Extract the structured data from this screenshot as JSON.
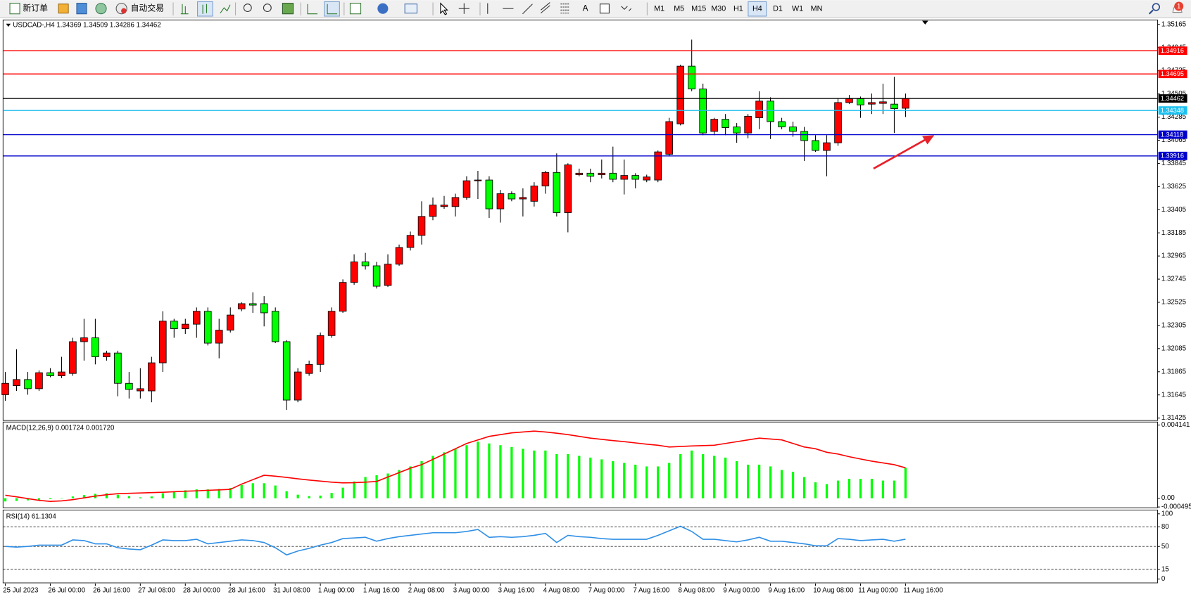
{
  "toolbar": {
    "new_order": "新订单",
    "auto_trading": "自动交易",
    "timeframes": [
      "M1",
      "M5",
      "M15",
      "M30",
      "H1",
      "H4",
      "D1",
      "W1",
      "MN"
    ],
    "active_timeframe": "H4",
    "notifications": "1"
  },
  "chart_data": [
    {
      "type": "candlestick",
      "title": "USDCAD-,H4  1.34369 1.34509 1.34286 1.34462",
      "up_color": "#ff0000",
      "down_color": "#00ff00",
      "open": [
        1.31647,
        1.31733,
        1.31791,
        1.31704,
        1.31856,
        1.31827,
        1.31849,
        1.32151,
        1.32188,
        1.32007,
        1.32043,
        1.31755,
        1.31683,
        1.31683,
        1.3195,
        1.32346,
        1.32274,
        1.32317,
        1.3244,
        1.32137,
        1.3226,
        1.32462,
        1.32512,
        1.32512,
        1.3244,
        1.32151,
        1.31596,
        1.31849,
        1.31935,
        1.32209,
        1.3244,
        1.32714,
        1.32909,
        1.32872,
        1.32685,
        1.32887,
        1.33046,
        1.33161,
        1.33341,
        1.33435,
        1.33435,
        1.33521,
        1.3368,
        1.33687,
        1.33413,
        1.33557,
        1.33507,
        1.33485,
        1.3363,
        1.33759,
        1.33377,
        1.33738,
        1.33752,
        1.33738,
        1.33752,
        1.33694,
        1.3373,
        1.33687,
        1.33687,
        1.33932,
        1.34221,
        1.34769,
        1.34552,
        1.34149,
        1.34264,
        1.34192,
        1.34134,
        1.34278,
        1.34437,
        1.34242,
        1.34192,
        1.34149,
        1.34062,
        1.33968,
        1.34041,
        1.34423,
        1.34459,
        1.34408,
        1.34415,
        1.34408,
        1.34369
      ],
      "high": [
        1.31863,
        1.32079,
        1.31863,
        1.31878,
        1.31899,
        1.32007,
        1.32188,
        1.32368,
        1.32368,
        1.32065,
        1.32065,
        1.31863,
        1.31899,
        1.32007,
        1.3244,
        1.32368,
        1.32368,
        1.32476,
        1.32476,
        1.32368,
        1.32476,
        1.32526,
        1.3262,
        1.32584,
        1.32476,
        1.32166,
        1.31899,
        1.31971,
        1.32238,
        1.32476,
        1.32743,
        1.32981,
        1.32995,
        1.32909,
        1.32981,
        1.33074,
        1.33197,
        1.33485,
        1.33521,
        1.33536,
        1.33557,
        1.33723,
        1.33774,
        1.33723,
        1.33593,
        1.33579,
        1.33608,
        1.33666,
        1.33774,
        1.3394,
        1.33846,
        1.33795,
        1.33795,
        1.33882,
        1.34004,
        1.33882,
        1.33752,
        1.33738,
        1.33968,
        1.34278,
        1.34783,
        1.35021,
        1.34603,
        1.34278,
        1.34314,
        1.34228,
        1.34314,
        1.34531,
        1.34473,
        1.34278,
        1.34242,
        1.34192,
        1.34113,
        1.34113,
        1.34459,
        1.34495,
        1.3448,
        1.34509,
        1.34603,
        1.34668,
        1.34509
      ],
      "low": [
        1.31589,
        1.31683,
        1.31647,
        1.31683,
        1.31813,
        1.31805,
        1.31827,
        1.31971,
        1.31935,
        1.31971,
        1.31632,
        1.31611,
        1.31611,
        1.31575,
        1.31863,
        1.32188,
        1.32224,
        1.32188,
        1.32115,
        1.31993,
        1.32238,
        1.3244,
        1.32425,
        1.32296,
        1.32137,
        1.31503,
        1.31575,
        1.31827,
        1.31863,
        1.32188,
        1.32425,
        1.32692,
        1.32836,
        1.32656,
        1.32671,
        1.32872,
        1.33017,
        1.33074,
        1.33305,
        1.33413,
        1.33341,
        1.335,
        1.33507,
        1.33327,
        1.33283,
        1.33485,
        1.33341,
        1.33435,
        1.33557,
        1.33341,
        1.3319,
        1.33723,
        1.33666,
        1.33702,
        1.33666,
        1.3355,
        1.33608,
        1.33666,
        1.33666,
        1.33911,
        1.34206,
        1.34531,
        1.34113,
        1.34113,
        1.34113,
        1.34041,
        1.34084,
        1.3417,
        1.34077,
        1.3417,
        1.34098,
        1.33867,
        1.33954,
        1.33723,
        1.34012,
        1.34408,
        1.34278,
        1.34314,
        1.34314,
        1.34134,
        1.34286
      ],
      "close": [
        1.31755,
        1.31791,
        1.31704,
        1.31856,
        1.31827,
        1.31863,
        1.32151,
        1.32188,
        1.32007,
        1.32043,
        1.31755,
        1.31697,
        1.31704,
        1.3195,
        1.32346,
        1.32274,
        1.32317,
        1.3244,
        1.32137,
        1.3226,
        1.32404,
        1.32512,
        1.32498,
        1.32425,
        1.32151,
        1.31596,
        1.31863,
        1.31935,
        1.32209,
        1.3244,
        1.32714,
        1.32909,
        1.32872,
        1.32678,
        1.32887,
        1.33046,
        1.33161,
        1.33341,
        1.33449,
        1.33449,
        1.33521,
        1.3368,
        1.33687,
        1.33413,
        1.33557,
        1.33507,
        1.33521,
        1.3363,
        1.33759,
        1.33377,
        1.33831,
        1.33752,
        1.33723,
        1.33752,
        1.33694,
        1.3373,
        1.33694,
        1.33716,
        1.33954,
        1.34242,
        1.34769,
        1.34552,
        1.34134,
        1.34264,
        1.34185,
        1.34134,
        1.34293,
        1.34437,
        1.34242,
        1.34192,
        1.34149,
        1.34062,
        1.33968,
        1.34041,
        1.34423,
        1.34459,
        1.34401,
        1.34423,
        1.3443,
        1.34365,
        1.34462
      ],
      "ylim": [
        1.31409,
        1.35201
      ],
      "yticks": [
        1.35165,
        1.34945,
        1.34725,
        1.34505,
        1.34285,
        1.34065,
        1.33845,
        1.33625,
        1.33405,
        1.33185,
        1.32965,
        1.32745,
        1.32525,
        1.32305,
        1.32085,
        1.31865,
        1.31645,
        1.31425
      ],
      "xlim": [
        -0.2,
        102.4
      ],
      "xticks": [
        {
          "value": 0,
          "label": "25 Jul 2023"
        },
        {
          "value": 4,
          "label": "26 Jul 00:00"
        },
        {
          "value": 8,
          "label": "26 Jul 16:00"
        },
        {
          "value": 12,
          "label": "27 Jul 08:00"
        },
        {
          "value": 16,
          "label": "28 Jul 00:00"
        },
        {
          "value": 20,
          "label": "28 Jul 16:00"
        },
        {
          "value": 24,
          "label": "31 Jul 08:00"
        },
        {
          "value": 28,
          "label": "1 Aug 00:00"
        },
        {
          "value": 32,
          "label": "1 Aug 16:00"
        },
        {
          "value": 36,
          "label": "2 Aug 08:00"
        },
        {
          "value": 40,
          "label": "3 Aug 00:00"
        },
        {
          "value": 44,
          "label": "3 Aug 16:00"
        },
        {
          "value": 48,
          "label": "4 Aug 08:00"
        },
        {
          "value": 52,
          "label": "7 Aug 00:00"
        },
        {
          "value": 56,
          "label": "7 Aug 16:00"
        },
        {
          "value": 60,
          "label": "8 Aug 08:00"
        },
        {
          "value": 64,
          "label": "9 Aug 00:00"
        },
        {
          "value": 68,
          "label": "9 Aug 16:00"
        },
        {
          "value": 72,
          "label": "10 Aug 08:00"
        },
        {
          "value": 76,
          "label": "11 Aug 00:00"
        },
        {
          "value": 80,
          "label": "11 Aug 16:00"
        }
      ],
      "hlines": [
        {
          "value": 1.34916,
          "color": "#ff0000"
        },
        {
          "value": 1.34695,
          "color": "#ff0000"
        },
        {
          "value": 1.34462,
          "color": "#000000"
        },
        {
          "value": 1.34348,
          "color": "#1ec0f0"
        },
        {
          "value": 1.34118,
          "color": "#0000cd"
        },
        {
          "value": 1.33916,
          "color": "#0000cd"
        }
      ]
    },
    {
      "type": "macd",
      "title": "MACD(12,26,9) 0.001724 0.001720",
      "ylim": [
        -0.000495,
        0.004141
      ],
      "yticks": [
        0.004141,
        {
          "value": 0,
          "label": "0.00"
        },
        -0.000495
      ],
      "series": [
        {
          "type": "bar",
          "color": "#00ff00",
          "values": [
            -0.00018,
            -0.00015,
            -0.00012,
            -0.0001,
            -5e-05,
            2e-05,
            0.0001,
            0.00018,
            0.00025,
            0.00028,
            0.0002,
            0.00012,
            5e-05,
            0.0001,
            0.00028,
            0.00038,
            0.00045,
            0.0005,
            0.0005,
            0.00052,
            0.00058,
            0.00075,
            0.00085,
            0.00085,
            0.00072,
            0.0004,
            0.0002,
            0.00012,
            0.00015,
            0.0003,
            0.0006,
            0.00095,
            0.0012,
            0.0013,
            0.0014,
            0.0016,
            0.0018,
            0.0021,
            0.0024,
            0.0026,
            0.0028,
            0.003,
            0.0032,
            0.0031,
            0.003,
            0.0029,
            0.0028,
            0.0027,
            0.0027,
            0.0025,
            0.0025,
            0.0024,
            0.0023,
            0.0022,
            0.0021,
            0.002,
            0.0019,
            0.0018,
            0.0018,
            0.002,
            0.0025,
            0.0027,
            0.0025,
            0.0024,
            0.0023,
            0.0021,
            0.0019,
            0.0019,
            0.0018,
            0.0016,
            0.0015,
            0.0012,
            0.0009,
            0.0008,
            0.001,
            0.0011,
            0.0011,
            0.0011,
            0.001,
            0.001,
            0.001724
          ]
        },
        {
          "type": "line",
          "color": "#ff0000",
          "values": [
            0.00017,
            8e-05,
            -2e-05,
            -0.00012,
            -0.00018,
            -0.00015,
            -8e-05,
            2e-05,
            0.00012,
            0.0002,
            0.00026,
            0.00028,
            0.0003,
            0.00032,
            0.00034,
            0.00037,
            0.0004,
            0.00042,
            0.00045,
            0.00047,
            0.0005,
            0.0008,
            0.00105,
            0.0013,
            0.00125,
            0.00118,
            0.0011,
            0.00103,
            0.00097,
            0.00091,
            0.00087,
            0.00088,
            0.00091,
            0.00095,
            0.0012,
            0.00145,
            0.0017,
            0.0019,
            0.0022,
            0.0025,
            0.0028,
            0.0031,
            0.0033,
            0.0035,
            0.0036,
            0.0037,
            0.00375,
            0.0038,
            0.00375,
            0.00368,
            0.0036,
            0.0035,
            0.0034,
            0.00333,
            0.00326,
            0.0032,
            0.00313,
            0.00306,
            0.003,
            0.0029,
            0.00293,
            0.00296,
            0.00298,
            0.003,
            0.0031,
            0.0032,
            0.0033,
            0.0034,
            0.00335,
            0.0033,
            0.0031,
            0.0029,
            0.0028,
            0.0026,
            0.0025,
            0.00235,
            0.00222,
            0.0021,
            0.002,
            0.0019,
            0.00172
          ]
        }
      ]
    },
    {
      "type": "rsi",
      "title": "RSI(14) 61.1304",
      "color": "#2f8fe6",
      "ylim": [
        0,
        100
      ],
      "yticks": [
        100,
        80,
        50,
        15,
        0
      ],
      "levels": [
        80,
        50,
        15
      ],
      "values": [
        50,
        49,
        50,
        52,
        52,
        52,
        60,
        59,
        54,
        54,
        48,
        46,
        45,
        52,
        60,
        59,
        59,
        61,
        54,
        56,
        58,
        60,
        59,
        56,
        48,
        37,
        43,
        47,
        52,
        56,
        62,
        63,
        64,
        58,
        62,
        65,
        67,
        69,
        71,
        71,
        71,
        73,
        76,
        64,
        65,
        64,
        65,
        67,
        70,
        56,
        67,
        65,
        64,
        62,
        61,
        61,
        61,
        61,
        67,
        74,
        81,
        73,
        61,
        61,
        59,
        57,
        60,
        64,
        58,
        58,
        56,
        54,
        51,
        51,
        62,
        61,
        59,
        60,
        61,
        58,
        61.1304
      ]
    }
  ]
}
